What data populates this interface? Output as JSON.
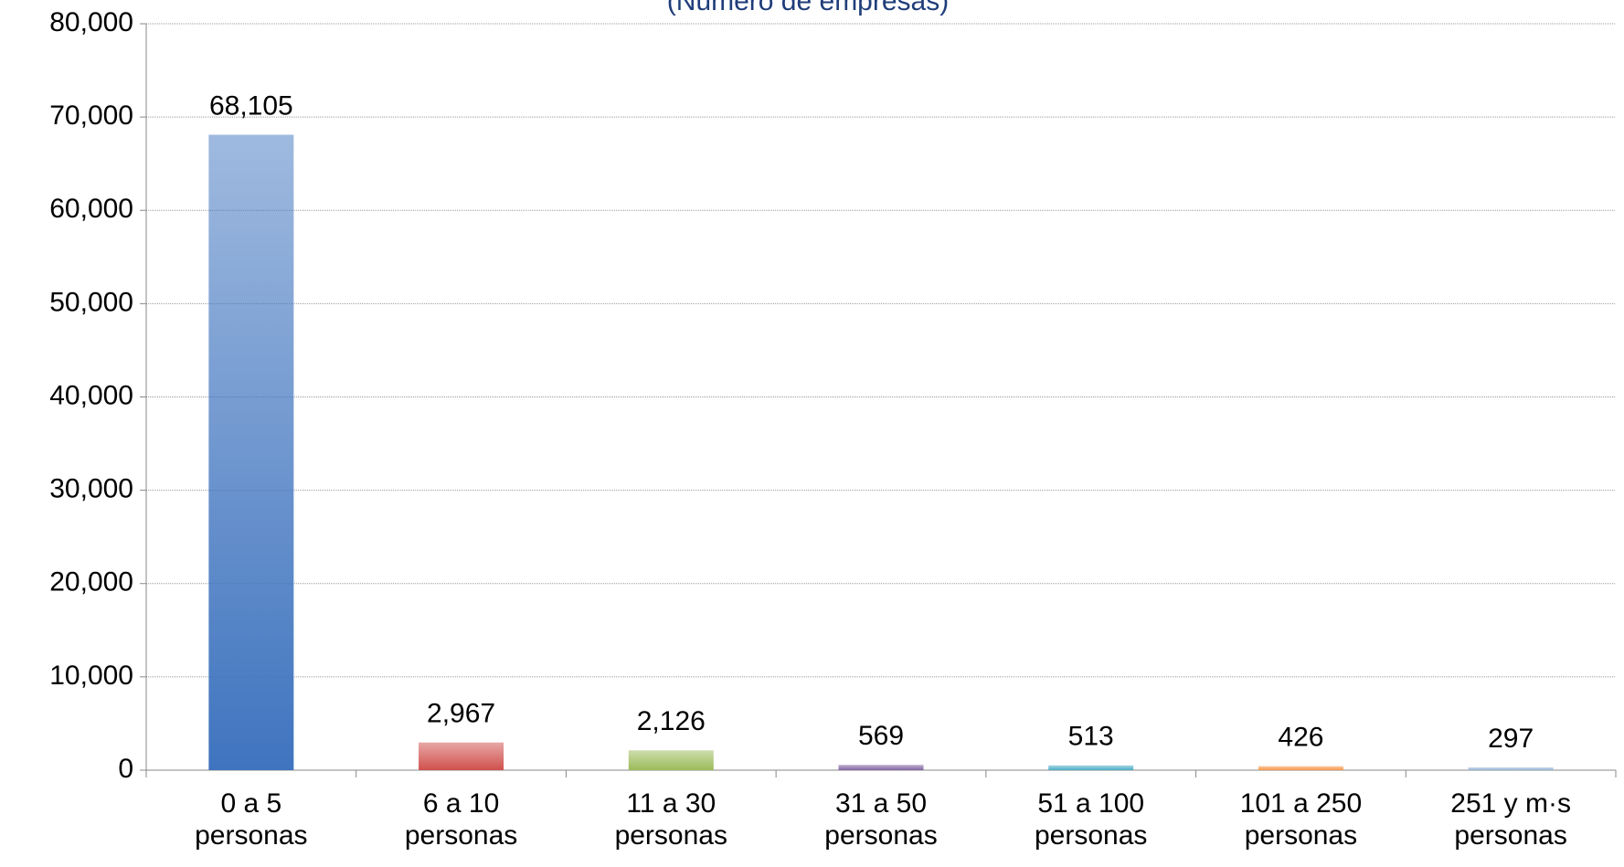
{
  "chart_data": {
    "type": "bar",
    "subtitle": "(Número de empresas)",
    "categories": [
      "0 a 5 personas",
      "6 a 10 personas",
      "11 a 30 personas",
      "31 a 50 personas",
      "51 a 100 personas",
      "101 a 250 personas",
      "251 y m·s personas"
    ],
    "values": [
      68105,
      2967,
      2126,
      569,
      513,
      426,
      297
    ],
    "value_labels": [
      "68,105",
      "2,967",
      "2,126",
      "569",
      "513",
      "426",
      "297"
    ],
    "colors": [
      "#3f74bf",
      "#d0504c",
      "#9bbb59",
      "#8064a2",
      "#4bacc6",
      "#f79646",
      "#95b3d7"
    ],
    "ylim": [
      0,
      80000
    ],
    "yticks": [
      0,
      {
        "value": 10000,
        "label": "10,000"
      },
      {
        "value": 20000,
        "label": "20,000"
      },
      {
        "value": 30000,
        "label": "30,000"
      },
      {
        "value": 40000,
        "label": "40,000"
      },
      {
        "value": 50000,
        "label": "50,000"
      },
      {
        "value": 60000,
        "label": "60,000"
      },
      {
        "value": 70000,
        "label": "70,000"
      },
      {
        "value": 80000,
        "label": "80,000"
      }
    ],
    "grid": true
  }
}
